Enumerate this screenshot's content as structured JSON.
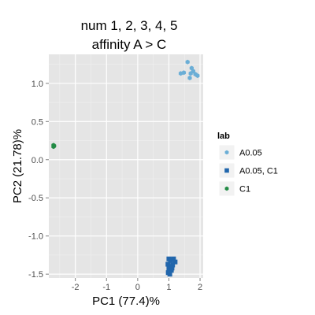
{
  "chart_data": {
    "type": "scatter",
    "title_lines": [
      "num 1, 2, 3, 4, 5",
      "affinity A > C"
    ],
    "xlabel": "PC1 (77.4)%",
    "ylabel": "PC2 (21.78)%",
    "xlim": [
      -2.85,
      2.1
    ],
    "ylim": [
      -1.55,
      1.38
    ],
    "x_ticks": [
      -2,
      -1,
      0,
      1,
      2
    ],
    "x_tick_labels": [
      "-2",
      "-1",
      "0",
      "1",
      "2"
    ],
    "y_ticks": [
      -1.5,
      -1.0,
      -0.5,
      0.0,
      0.5,
      1.0
    ],
    "y_tick_labels": [
      "-1.5",
      "-1.0",
      "-0.5",
      "0.0",
      "0.5",
      "1.0"
    ],
    "grid": true,
    "panel_background": "#e5e5e5",
    "legend": {
      "title": "lab",
      "position": "right"
    },
    "series": [
      {
        "name": "A0.05",
        "color": "#6baed6",
        "marker": "hexagon",
        "points": [
          [
            1.6,
            1.28
          ],
          [
            1.73,
            1.2
          ],
          [
            1.78,
            1.16
          ],
          [
            1.7,
            1.13
          ],
          [
            1.85,
            1.12
          ],
          [
            1.92,
            1.1
          ],
          [
            1.38,
            1.13
          ],
          [
            1.48,
            1.14
          ],
          [
            1.67,
            1.07
          ]
        ]
      },
      {
        "name": "A0.05, C1",
        "color": "#2166ac",
        "marker": "square",
        "points": [
          [
            1.0,
            -1.3
          ],
          [
            1.05,
            -1.32
          ],
          [
            1.15,
            -1.3
          ],
          [
            1.2,
            -1.34
          ],
          [
            0.97,
            -1.37
          ],
          [
            1.05,
            -1.4
          ],
          [
            1.12,
            -1.38
          ],
          [
            1.0,
            -1.43
          ],
          [
            1.08,
            -1.45
          ],
          [
            0.98,
            -1.48
          ],
          [
            1.03,
            -1.5
          ],
          [
            1.1,
            -1.42
          ]
        ]
      },
      {
        "name": "C1",
        "color": "#238b45",
        "marker": "hexagon",
        "points": [
          [
            -2.7,
            0.19
          ],
          [
            -2.7,
            0.17
          ],
          [
            -2.68,
            0.18
          ]
        ]
      }
    ]
  }
}
